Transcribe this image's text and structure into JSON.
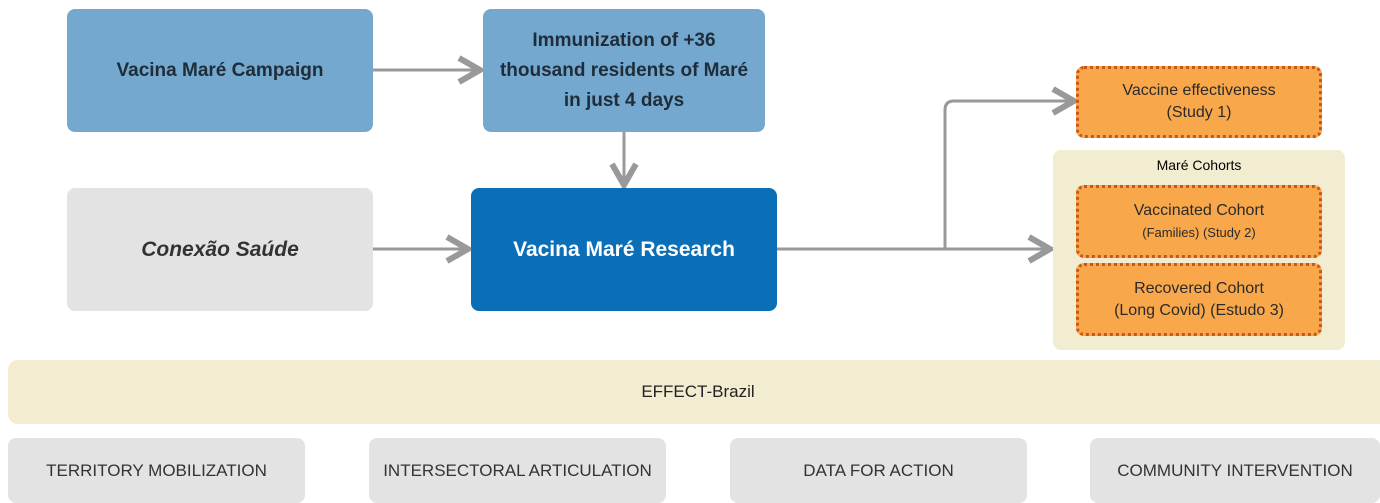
{
  "nodes": [
    {
      "id": "campaign",
      "label": "Vacina Maré Campaign"
    },
    {
      "id": "immunization",
      "label": "Immunization of +36 thousand residents of Maré in just 4 days"
    },
    {
      "id": "conexao",
      "label": "Conexão Saúde"
    },
    {
      "id": "research",
      "label": "Vacina Maré Research"
    },
    {
      "id": "effectiveness",
      "label": "Vaccine effectiveness",
      "sublabel": "(Study 1)"
    },
    {
      "id": "vaccinated",
      "label": "Vaccinated Cohort",
      "sublabel": "(Families) (Study 2)"
    },
    {
      "id": "recovered",
      "label": "Recovered Cohort",
      "sublabel": "(Long Covid) (Estudo 3)"
    }
  ],
  "group": {
    "label": "Maré Cohorts"
  },
  "banner": {
    "label": "EFFECT-Brazil"
  },
  "pillars": [
    "TERRITORY MOBILIZATION",
    "INTERSECTORAL ARTICULATION",
    "DATA FOR ACTION",
    "COMMUNITY INTERVENTION"
  ]
}
